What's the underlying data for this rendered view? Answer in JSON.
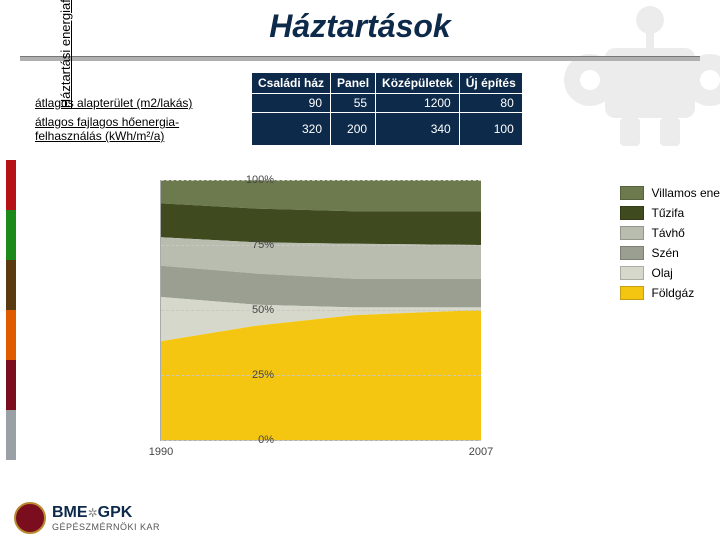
{
  "title": {
    "text": "Háztartások",
    "fontsize": 32,
    "color": "#0d2a4a"
  },
  "stripes_colors": [
    "#b51218",
    "#1b8a1b",
    "#5a3a10",
    "#e05a00",
    "#7a0e1e",
    "#9aa0a6"
  ],
  "table": {
    "columns": [
      "Családi ház",
      "Panel",
      "Középületek",
      "Új építés"
    ],
    "rows": [
      {
        "label": "átlagos alapterület (m2/lakás)",
        "values": [
          90,
          55,
          1200,
          80
        ]
      },
      {
        "label": "átlagos fajlagos hőenergia-felhasználás (kWh/m²/a)",
        "values": [
          320,
          200,
          340,
          100
        ]
      }
    ],
    "header_bg": "#0d2a4a",
    "header_fg": "#ffffff",
    "cell_bg": "#0d2a4a",
    "cell_fg": "#ffffff",
    "label_fontsize": 12
  },
  "chart": {
    "type": "area",
    "ylabel": "Háztartási energiafelhasználás, %",
    "ylim": [
      0,
      100
    ],
    "yticks": [
      0,
      25,
      50,
      75,
      100
    ],
    "x_range": [
      "1990",
      "2007"
    ],
    "x_positions": [
      0,
      1
    ],
    "background_color": "#fcfcf8",
    "grid_color": "#c8c8c0",
    "label_fontsize": 11,
    "series": [
      {
        "name": "Villamos energia",
        "color": "#6c7a4e",
        "data": [
          [
            0,
            100
          ],
          [
            0.3,
            100
          ],
          [
            0.6,
            100
          ],
          [
            1,
            100
          ]
        ]
      },
      {
        "name": "Tűzifa",
        "color": "#3f4a1f",
        "data": [
          [
            0,
            91
          ],
          [
            0.3,
            89
          ],
          [
            0.6,
            88
          ],
          [
            1,
            88
          ]
        ]
      },
      {
        "name": "Távhő",
        "color": "#b8bdb0",
        "data": [
          [
            0,
            78
          ],
          [
            0.3,
            76
          ],
          [
            0.6,
            75.5
          ],
          [
            1,
            75
          ]
        ]
      },
      {
        "name": "Szén",
        "color": "#9a9f92",
        "data": [
          [
            0,
            67
          ],
          [
            0.3,
            64
          ],
          [
            0.6,
            62
          ],
          [
            1,
            62
          ]
        ]
      },
      {
        "name": "Olaj",
        "color": "#d6d8cc",
        "data": [
          [
            0,
            55
          ],
          [
            0.3,
            52
          ],
          [
            0.6,
            51
          ],
          [
            1,
            51
          ]
        ]
      },
      {
        "name": "Földgáz",
        "color": "#f4c612",
        "data": [
          [
            0,
            38
          ],
          [
            0.3,
            44
          ],
          [
            0.6,
            48
          ],
          [
            1,
            50
          ]
        ]
      }
    ],
    "legend_position": "right"
  },
  "logo": {
    "line1_a": "BME",
    "line1_b": "GPK",
    "gear_glyph": "✲",
    "line2": "GÉPÉSZMÉRNÖKI KAR"
  }
}
